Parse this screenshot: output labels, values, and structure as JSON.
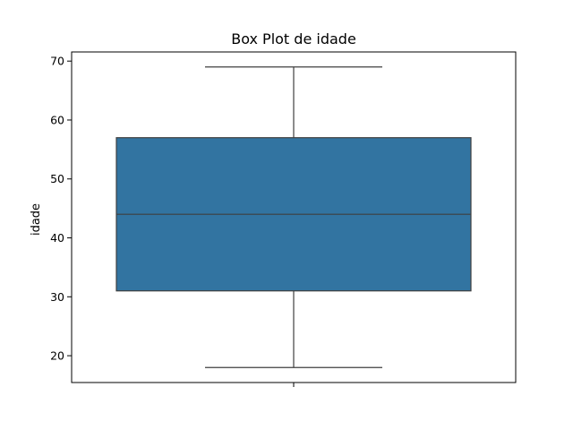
{
  "chart_data": {
    "type": "box",
    "title": "Box Plot de idade",
    "xlabel": "",
    "ylabel": "idade",
    "ylim": [
      15.45,
      71.55
    ],
    "yticks": [
      20,
      30,
      40,
      50,
      60,
      70
    ],
    "box": {
      "whisker_low": 18,
      "q1": 31,
      "median": 44,
      "q3": 57,
      "whisker_high": 69
    },
    "box_color": "#3274a1",
    "line_color": "#3f3f3f",
    "grid": false
  }
}
